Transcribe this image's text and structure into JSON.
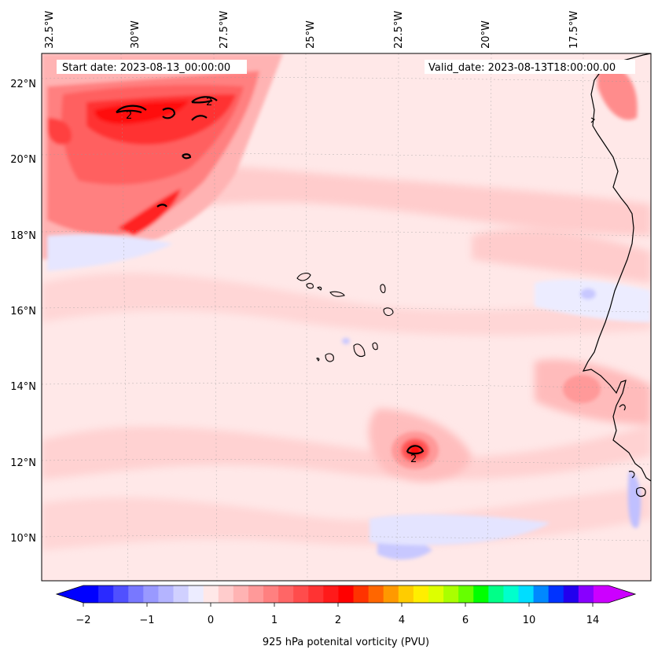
{
  "header": {
    "start_date": "Start date: 2023-08-13_00:00:00",
    "valid_date": "Valid_date: 2023-08-13T18:00:00.00"
  },
  "map": {
    "lon_labels": [
      "32.5°W",
      "30°W",
      "27.5°W",
      "25°W",
      "22.5°W",
      "20°W",
      "17.5°W"
    ],
    "lat_labels": [
      "22°N",
      "20°N",
      "18°N",
      "16°N",
      "14°N",
      "12°N",
      "10°N"
    ],
    "contour_label": "2",
    "background_color": "#ffe8e8",
    "coastline_color": "#000000"
  },
  "colorbar": {
    "title": "925 hPa potenital vorticity (PVU)",
    "tick_labels": [
      "−2",
      "−1",
      "0",
      "1",
      "2",
      "4",
      "6",
      "10",
      "14"
    ],
    "colors": [
      "#0000ff",
      "#2a2aff",
      "#5050ff",
      "#7878ff",
      "#9999ff",
      "#b4b4ff",
      "#d0d0ff",
      "#ececff",
      "#ffe8e8",
      "#ffcccc",
      "#ffb3b3",
      "#ff9999",
      "#ff8080",
      "#ff6666",
      "#ff4c4c",
      "#ff3333",
      "#ff1a1a",
      "#ff0000",
      "#ff3300",
      "#ff6600",
      "#ff9900",
      "#ffcc00",
      "#ffee00",
      "#ddff00",
      "#aaff00",
      "#66ff00",
      "#00ff00",
      "#00ff88",
      "#00ffcc",
      "#00ddff",
      "#0088ff",
      "#0033ff",
      "#2200ee",
      "#8800ff",
      "#cc00ff"
    ],
    "extend_low_color": "#0000ff",
    "extend_high_color": "#cc00ff"
  }
}
